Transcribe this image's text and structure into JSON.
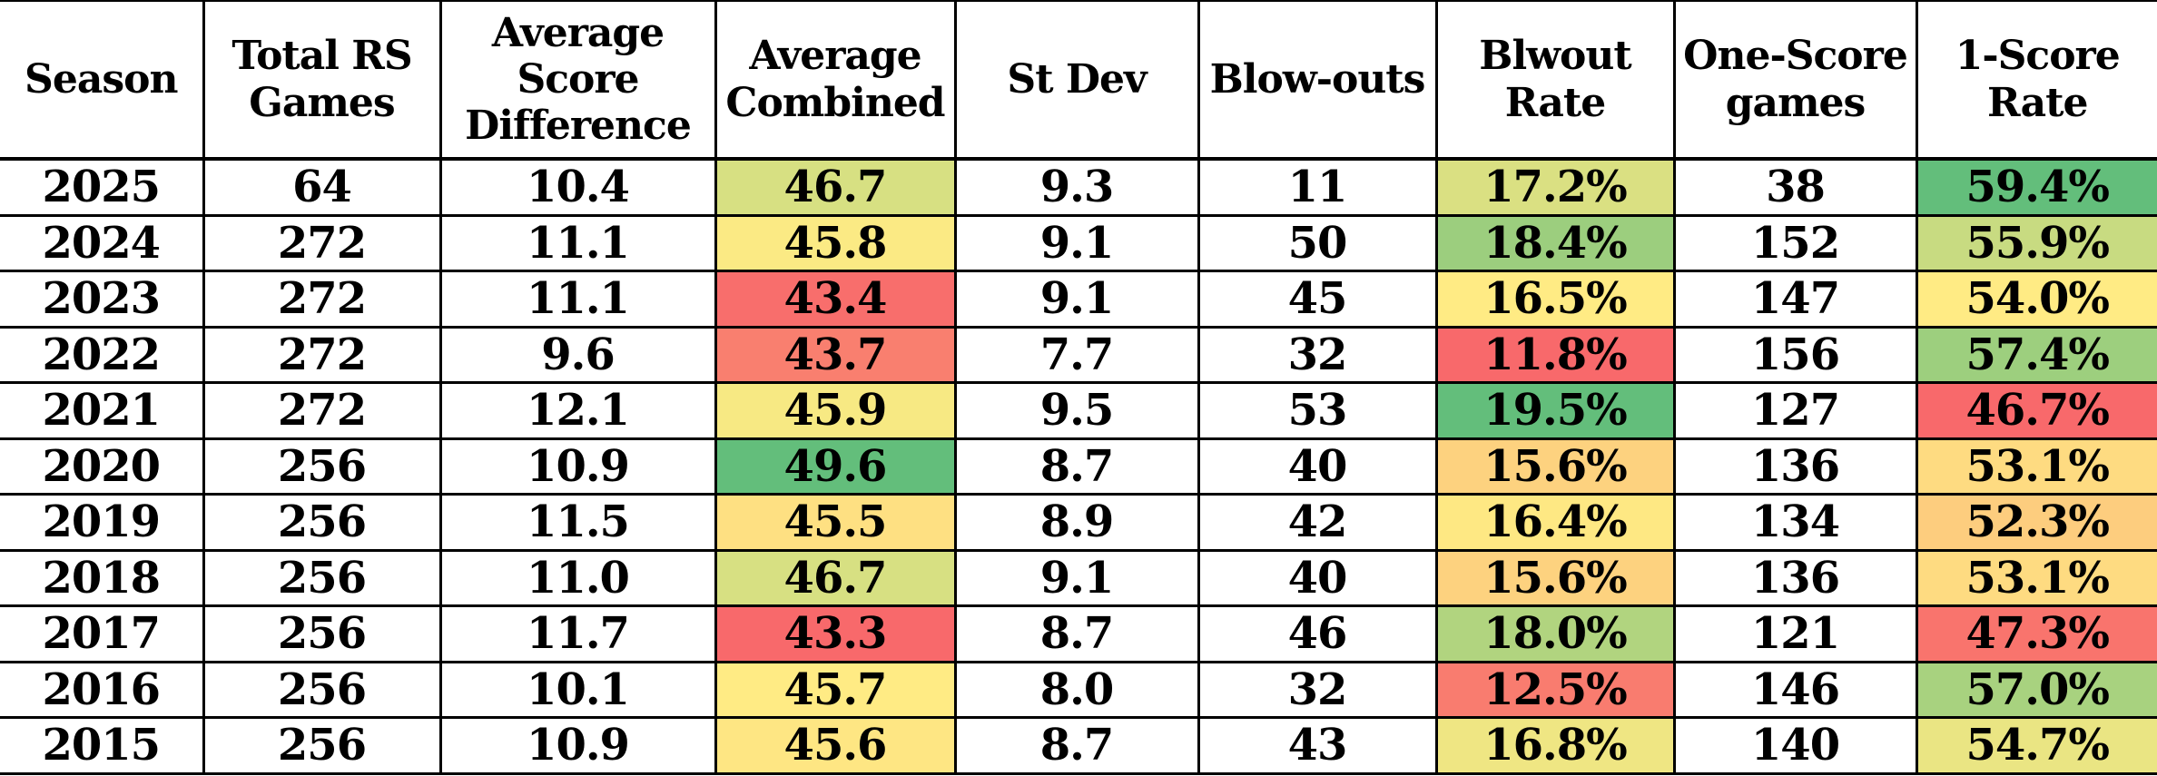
{
  "chart_data": {
    "type": "table",
    "description_of_formatting": "data table with 3-color conditional formatting (red-yellow-green) on Average Combined, Blwout Rate and 1-Score Rate columns",
    "color_scale": {
      "min_color": "#F8696B",
      "mid_color": "#FFEB84",
      "max_color": "#63BE7B"
    },
    "columns": [
      {
        "key": "season",
        "label": "Season"
      },
      {
        "key": "total_rs_games",
        "label": "Total RS Games"
      },
      {
        "key": "avg_score_diff",
        "label": "Average Score Difference"
      },
      {
        "key": "avg_combined",
        "label": "Average Combined"
      },
      {
        "key": "st_dev",
        "label": "St Dev"
      },
      {
        "key": "blow_outs",
        "label": "Blow-outs"
      },
      {
        "key": "blwout_rate",
        "label": "Blwout Rate"
      },
      {
        "key": "one_score_games",
        "label": "One-Score games"
      },
      {
        "key": "one_score_rate",
        "label": "1-Score Rate"
      }
    ],
    "rows": [
      {
        "season": "2025",
        "total_rs_games": "64",
        "avg_score_diff": "10.4",
        "avg_combined": "46.7",
        "avg_combined_bg": "#D7E082",
        "st_dev": "9.3",
        "blow_outs": "11",
        "blwout_rate": "17.2%",
        "blwout_rate_bg": "#DAE082",
        "one_score_games": "38",
        "one_score_rate": "59.4%",
        "one_score_rate_bg": "#63BE7B"
      },
      {
        "season": "2024",
        "total_rs_games": "272",
        "avg_score_diff": "11.1",
        "avg_combined": "45.8",
        "avg_combined_bg": "#FBEA84",
        "st_dev": "9.1",
        "blow_outs": "50",
        "blwout_rate": "18.4%",
        "blwout_rate_bg": "#9CCE7E",
        "one_score_games": "152",
        "one_score_rate": "55.9%",
        "one_score_rate_bg": "#C8DB81"
      },
      {
        "season": "2023",
        "total_rs_games": "272",
        "avg_score_diff": "11.1",
        "avg_combined": "43.4",
        "avg_combined_bg": "#F86E6C",
        "st_dev": "9.1",
        "blow_outs": "45",
        "blwout_rate": "16.5%",
        "blwout_rate_bg": "#FFEB84",
        "one_score_games": "147",
        "one_score_rate": "54.0%",
        "one_score_rate_bg": "#FFEB84"
      },
      {
        "season": "2022",
        "total_rs_games": "272",
        "avg_score_diff": "9.6",
        "avg_combined": "43.7",
        "avg_combined_bg": "#F97F6F",
        "st_dev": "7.7",
        "blow_outs": "32",
        "blwout_rate": "11.8%",
        "blwout_rate_bg": "#F8696B",
        "one_score_games": "156",
        "one_score_rate": "57.4%",
        "one_score_rate_bg": "#9DCF7E"
      },
      {
        "season": "2021",
        "total_rs_games": "272",
        "avg_score_diff": "12.1",
        "avg_combined": "45.9",
        "avg_combined_bg": "#F7E983",
        "st_dev": "9.5",
        "blow_outs": "53",
        "blwout_rate": "19.5%",
        "blwout_rate_bg": "#63BE7B",
        "one_score_games": "127",
        "one_score_rate": "46.7%",
        "one_score_rate_bg": "#F8696B"
      },
      {
        "season": "2020",
        "total_rs_games": "256",
        "avg_score_diff": "10.9",
        "avg_combined": "49.6",
        "avg_combined_bg": "#63BE7B",
        "st_dev": "8.7",
        "blow_outs": "40",
        "blwout_rate": "15.6%",
        "blwout_rate_bg": "#FDD27F",
        "one_score_games": "136",
        "one_score_rate": "53.1%",
        "one_score_rate_bg": "#FEDB81"
      },
      {
        "season": "2019",
        "total_rs_games": "256",
        "avg_score_diff": "11.5",
        "avg_combined": "45.5",
        "avg_combined_bg": "#FEE082",
        "st_dev": "8.9",
        "blow_outs": "42",
        "blwout_rate": "16.4%",
        "blwout_rate_bg": "#FEE883",
        "one_score_games": "134",
        "one_score_rate": "52.3%",
        "one_score_rate_bg": "#FDCD7E"
      },
      {
        "season": "2018",
        "total_rs_games": "256",
        "avg_score_diff": "11.0",
        "avg_combined": "46.7",
        "avg_combined_bg": "#D7E082",
        "st_dev": "9.1",
        "blow_outs": "40",
        "blwout_rate": "15.6%",
        "blwout_rate_bg": "#FDD27F",
        "one_score_games": "136",
        "one_score_rate": "53.1%",
        "one_score_rate_bg": "#FEDB81"
      },
      {
        "season": "2017",
        "total_rs_games": "256",
        "avg_score_diff": "11.7",
        "avg_combined": "43.3",
        "avg_combined_bg": "#F8696B",
        "st_dev": "8.7",
        "blow_outs": "46",
        "blwout_rate": "18.0%",
        "blwout_rate_bg": "#B1D47F",
        "one_score_games": "121",
        "one_score_rate": "47.3%",
        "one_score_rate_bg": "#F9746D"
      },
      {
        "season": "2016",
        "total_rs_games": "256",
        "avg_score_diff": "10.1",
        "avg_combined": "45.7",
        "avg_combined_bg": "#FFEB84",
        "st_dev": "8.0",
        "blow_outs": "32",
        "blwout_rate": "12.5%",
        "blwout_rate_bg": "#F97C6F",
        "one_score_games": "146",
        "one_score_rate": "57.0%",
        "one_score_rate_bg": "#A8D27F"
      },
      {
        "season": "2015",
        "total_rs_games": "256",
        "avg_score_diff": "10.9",
        "avg_combined": "45.6",
        "avg_combined_bg": "#FEE683",
        "st_dev": "8.7",
        "blow_outs": "43",
        "blwout_rate": "16.8%",
        "blwout_rate_bg": "#EFE683",
        "one_score_games": "140",
        "one_score_rate": "54.7%",
        "one_score_rate_bg": "#EAE583"
      }
    ]
  }
}
